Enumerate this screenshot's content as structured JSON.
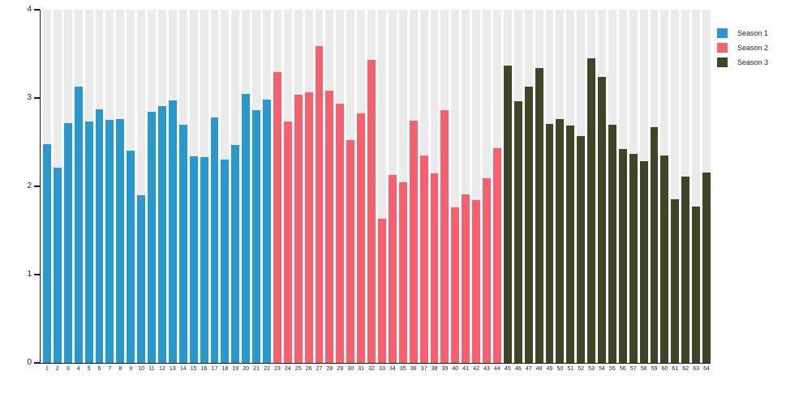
{
  "chart_data": {
    "type": "bar",
    "title": "",
    "xlabel": "",
    "ylabel": "",
    "ylim": [
      0,
      4
    ],
    "yticks": [
      "0",
      "1",
      "2",
      "3",
      "4"
    ],
    "grid": false,
    "legend_position": "top-right",
    "plot_stripe_color": "#EBEBEB",
    "axis_color": "#1a1a1a",
    "categories": [
      "1",
      "2",
      "3",
      "4",
      "5",
      "6",
      "7",
      "8",
      "9",
      "10",
      "11",
      "12",
      "13",
      "14",
      "15",
      "16",
      "17",
      "18",
      "19",
      "20",
      "21",
      "22",
      "23",
      "24",
      "25",
      "26",
      "27",
      "28",
      "29",
      "30",
      "31",
      "32",
      "33",
      "34",
      "35",
      "36",
      "37",
      "38",
      "39",
      "40",
      "41",
      "42",
      "43",
      "44",
      "45",
      "46",
      "47",
      "48",
      "49",
      "50",
      "51",
      "52",
      "53",
      "54",
      "55",
      "56",
      "57",
      "58",
      "59",
      "60",
      "61",
      "62",
      "63",
      "64"
    ],
    "series": [
      {
        "name": "Season 1",
        "color": "#2799CE",
        "values": [
          2.48,
          2.21,
          2.72,
          3.13,
          2.73,
          2.87,
          2.75,
          2.76,
          2.4,
          1.9,
          2.84,
          2.91,
          2.97,
          2.7,
          2.34,
          2.33,
          2.78,
          2.3,
          2.47,
          3.05,
          2.86,
          2.98
        ]
      },
      {
        "name": "Season 2",
        "color": "#F7606E",
        "values": [
          3.29,
          2.73,
          3.04,
          3.06,
          3.59,
          3.08,
          2.94,
          2.52,
          2.83,
          3.43,
          1.63,
          2.13,
          2.05,
          2.74,
          2.35,
          2.15,
          2.86,
          1.76,
          1.91,
          1.84,
          2.09,
          2.43
        ]
      },
      {
        "name": "Season 3",
        "color": "#3F4627",
        "values": [
          3.37,
          2.96,
          3.13,
          3.34,
          2.71,
          2.76,
          2.69,
          2.57,
          3.45,
          3.24,
          2.7,
          2.42,
          2.37,
          2.28,
          2.67,
          2.35,
          1.85,
          2.11,
          1.77,
          2.16
        ]
      }
    ]
  }
}
